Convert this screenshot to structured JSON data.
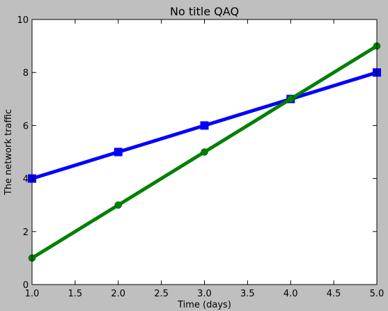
{
  "chart_data": {
    "type": "line",
    "title": "No title QAQ",
    "xlabel": "Time (days)",
    "ylabel": "The network traffic",
    "xlim": [
      1.0,
      5.0
    ],
    "ylim": [
      0,
      10
    ],
    "x_ticks": [
      "1.0",
      "1.5",
      "2.0",
      "2.5",
      "3.0",
      "3.5",
      "4.0",
      "4.5",
      "5.0"
    ],
    "y_ticks": [
      "0",
      "2",
      "4",
      "6",
      "8",
      "10"
    ],
    "grid": false,
    "background_color": "#bfbfbf",
    "plot_background_color": "#ffffff",
    "series": [
      {
        "x": [
          1,
          2,
          3,
          4,
          5
        ],
        "y": [
          4,
          5,
          6,
          7,
          8
        ],
        "color": "#0000ff",
        "marker": "square"
      },
      {
        "x": [
          1,
          2,
          3,
          4,
          5
        ],
        "y": [
          1,
          3,
          5,
          7,
          9
        ],
        "color": "#008000",
        "marker": "circle"
      }
    ]
  }
}
